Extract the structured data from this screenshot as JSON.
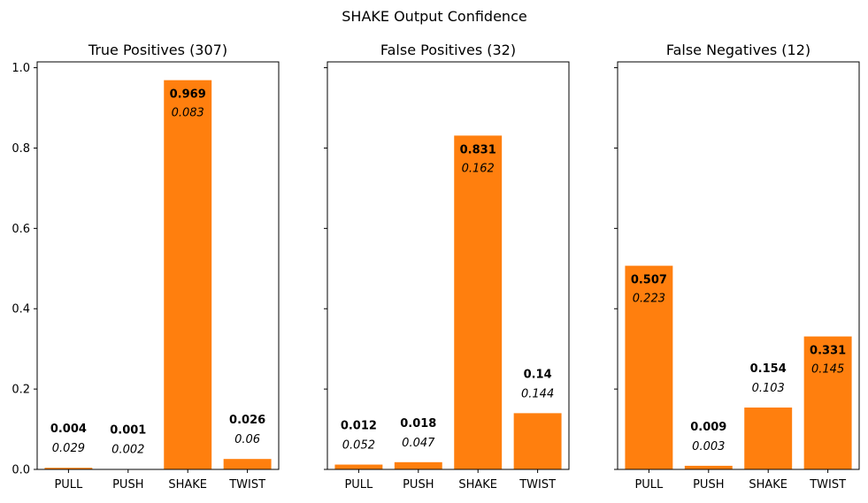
{
  "figure": {
    "suptitle": "SHAKE Output Confidence"
  },
  "style": {
    "bar_color": "#ff7f0e",
    "axis_color": "#000000",
    "text_color": "#000000"
  },
  "chart_data": [
    {
      "type": "bar",
      "title": "True Positives (307)",
      "categories": [
        "PULL",
        "PUSH",
        "SHAKE",
        "TWIST"
      ],
      "values": [
        0.004,
        0.001,
        0.969,
        0.026
      ],
      "value_labels": [
        "0.004",
        "0.001",
        "0.969",
        "0.026"
      ],
      "std_labels": [
        "0.029",
        "0.002",
        "0.083",
        "0.06"
      ],
      "ylim": [
        0,
        1.0
      ],
      "yticks": [
        "0.0",
        "0.2",
        "0.4",
        "0.6",
        "0.8",
        "1.0"
      ],
      "show_ytick_labels": true
    },
    {
      "type": "bar",
      "title": "False Positives (32)",
      "categories": [
        "PULL",
        "PUSH",
        "SHAKE",
        "TWIST"
      ],
      "values": [
        0.012,
        0.018,
        0.831,
        0.14
      ],
      "value_labels": [
        "0.012",
        "0.018",
        "0.831",
        "0.14"
      ],
      "std_labels": [
        "0.052",
        "0.047",
        "0.162",
        "0.144"
      ],
      "ylim": [
        0,
        1.0
      ],
      "yticks": [
        "0.0",
        "0.2",
        "0.4",
        "0.6",
        "0.8",
        "1.0"
      ],
      "show_ytick_labels": false
    },
    {
      "type": "bar",
      "title": "False Negatives (12)",
      "categories": [
        "PULL",
        "PUSH",
        "SHAKE",
        "TWIST"
      ],
      "values": [
        0.507,
        0.009,
        0.154,
        0.331
      ],
      "value_labels": [
        "0.507",
        "0.009",
        "0.154",
        "0.331"
      ],
      "std_labels": [
        "0.223",
        "0.003",
        "0.103",
        "0.145"
      ],
      "ylim": [
        0,
        1.0
      ],
      "yticks": [
        "0.0",
        "0.2",
        "0.4",
        "0.6",
        "0.8",
        "1.0"
      ],
      "show_ytick_labels": false
    }
  ]
}
